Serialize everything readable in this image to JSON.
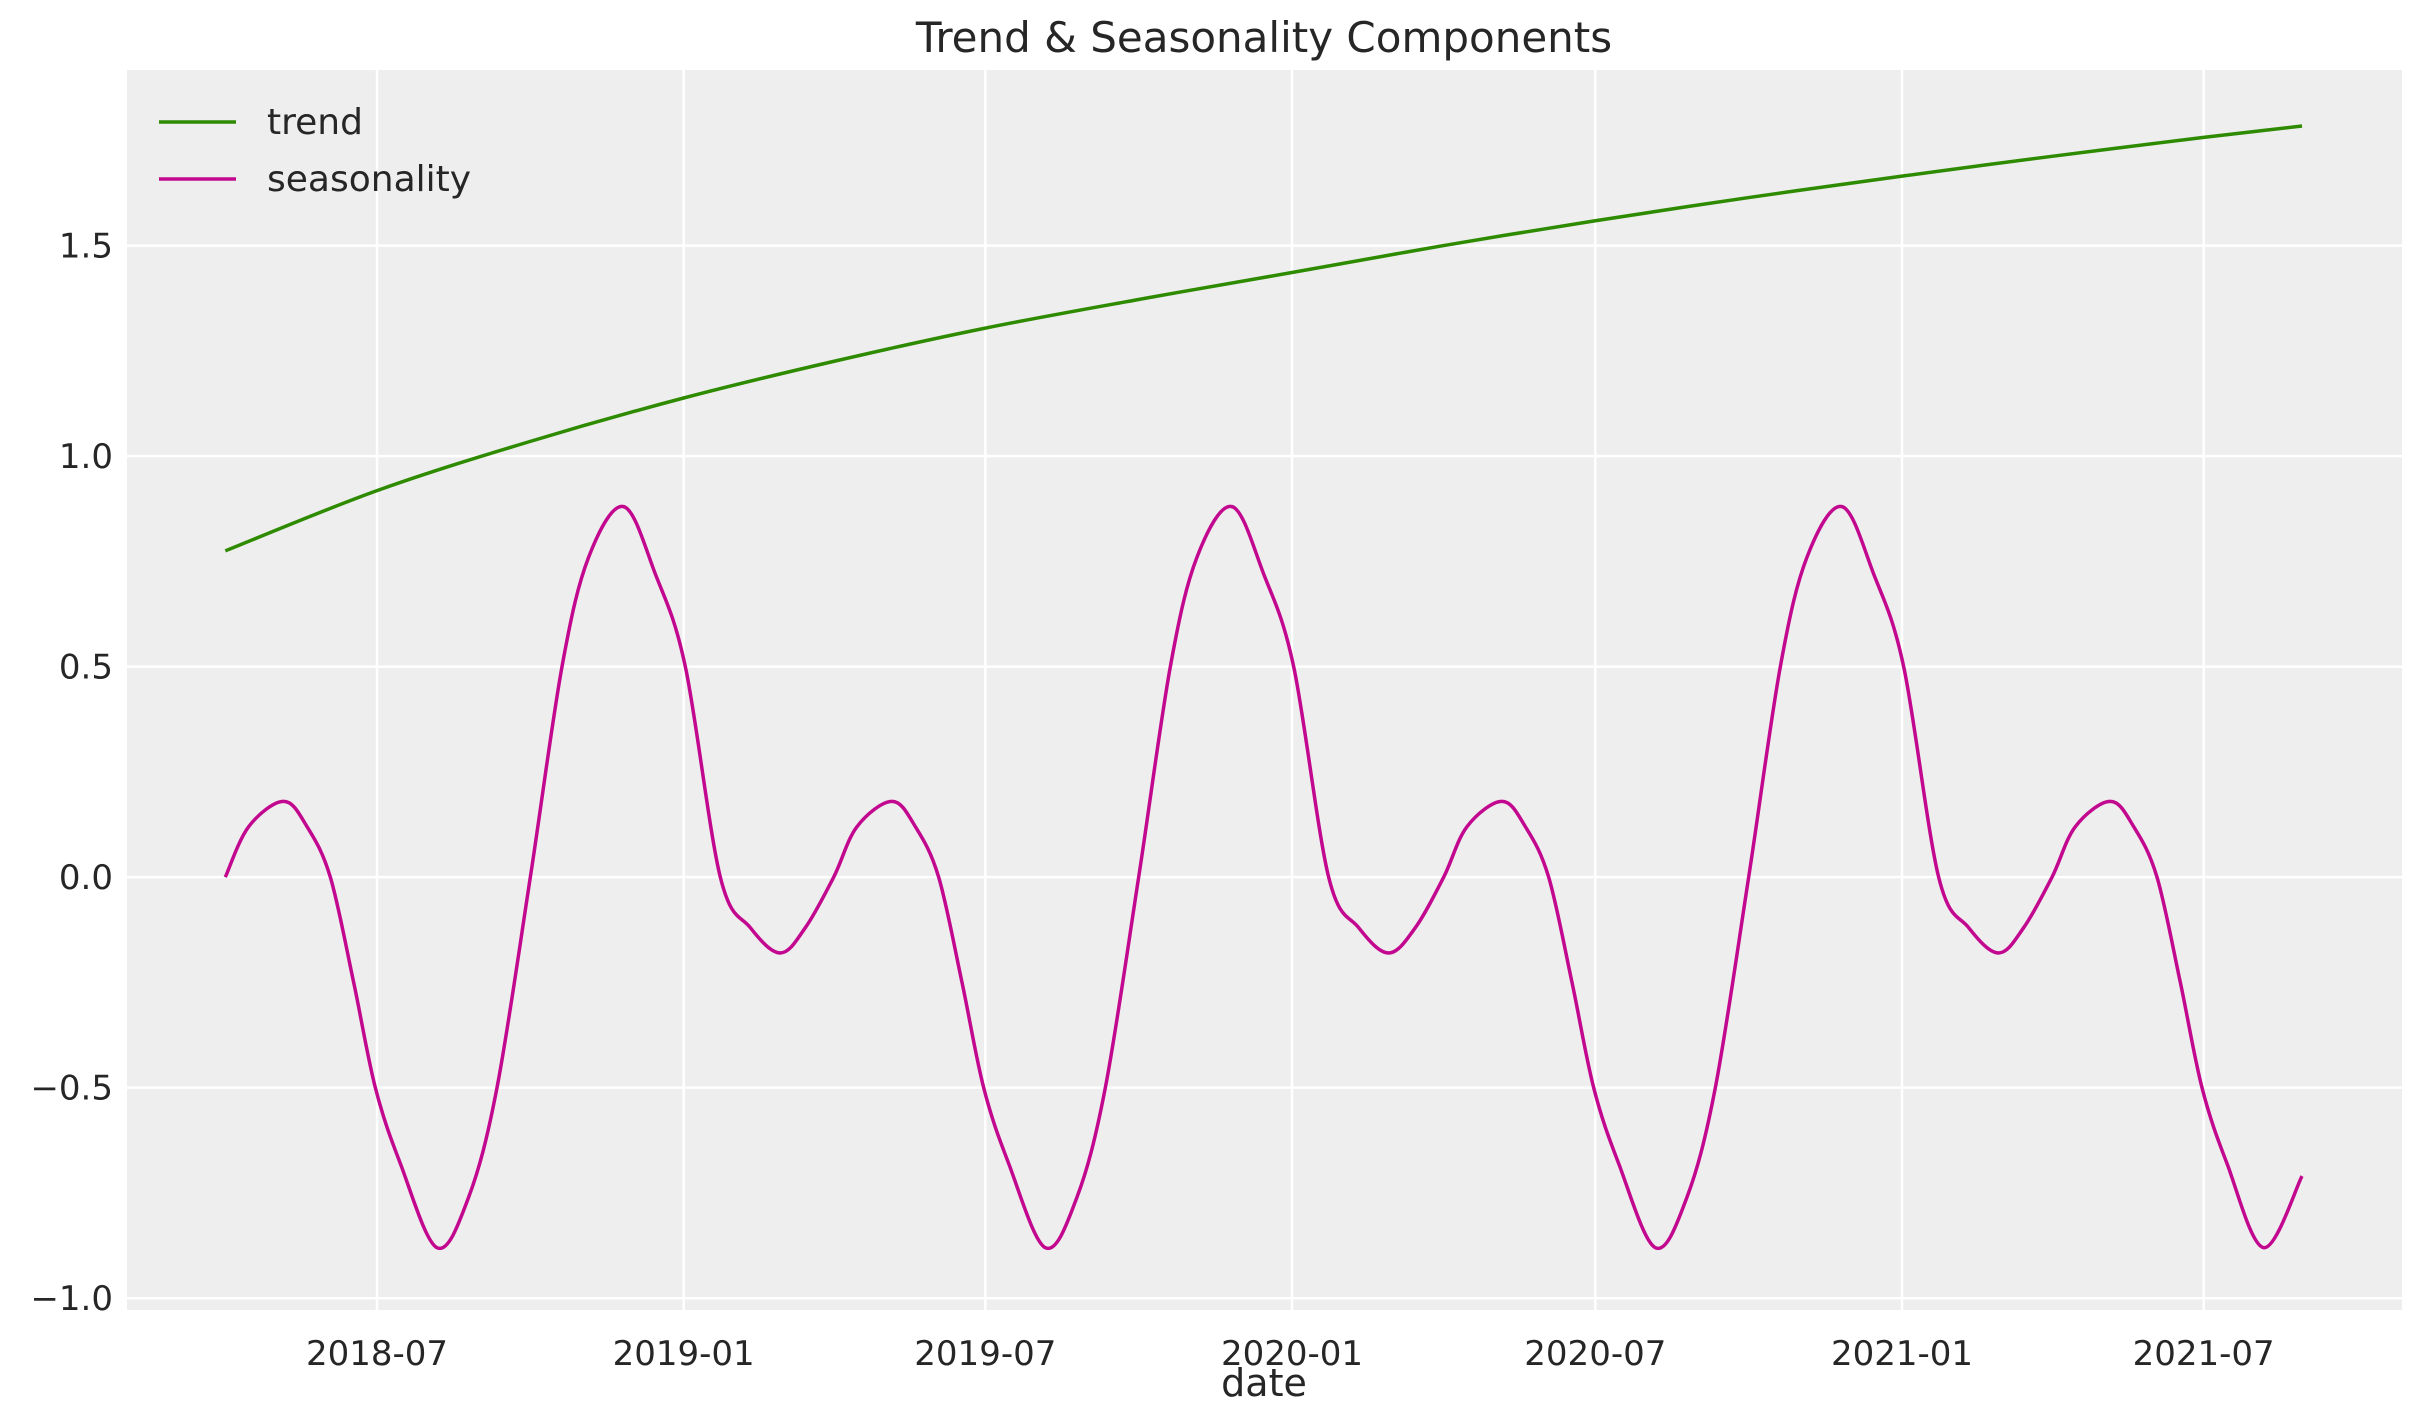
{
  "chart_data": {
    "type": "line",
    "title": "Trend & Seasonality Components",
    "xlabel": "date",
    "ylabel": "",
    "xlim": [
      "2018-02-01",
      "2021-10-28"
    ],
    "ylim": [
      -1.028,
      1.917
    ],
    "grid": true,
    "legend_placement": "top-left",
    "x_ticks": [
      {
        "date": "2018-07-01",
        "label": "2018-07"
      },
      {
        "date": "2019-01-01",
        "label": "2019-01"
      },
      {
        "date": "2019-07-01",
        "label": "2019-07"
      },
      {
        "date": "2020-01-01",
        "label": "2020-01"
      },
      {
        "date": "2020-07-01",
        "label": "2020-07"
      },
      {
        "date": "2021-01-01",
        "label": "2021-01"
      },
      {
        "date": "2021-07-01",
        "label": "2021-07"
      }
    ],
    "y_ticks": [
      {
        "value": -1.0,
        "label": "−1.0"
      },
      {
        "value": -0.5,
        "label": "−0.5"
      },
      {
        "value": 0.0,
        "label": "0.0"
      },
      {
        "value": 0.5,
        "label": "0.5"
      },
      {
        "value": 1.0,
        "label": "1.0"
      },
      {
        "value": 1.5,
        "label": "1.5"
      }
    ],
    "series": [
      {
        "name": "trend",
        "color": "#2e8b00",
        "points": [
          [
            "2018-04-01",
            0.775
          ],
          [
            "2018-07-01",
            0.918
          ],
          [
            "2018-10-01",
            1.035
          ],
          [
            "2019-01-01",
            1.138
          ],
          [
            "2019-04-01",
            1.225
          ],
          [
            "2019-07-01",
            1.304
          ],
          [
            "2019-10-01",
            1.372
          ],
          [
            "2020-01-01",
            1.436
          ],
          [
            "2020-04-01",
            1.5
          ],
          [
            "2020-07-01",
            1.559
          ],
          [
            "2020-10-01",
            1.614
          ],
          [
            "2021-01-01",
            1.665
          ],
          [
            "2021-04-01",
            1.712
          ],
          [
            "2021-07-01",
            1.757
          ],
          [
            "2021-08-29",
            1.784
          ]
        ]
      },
      {
        "name": "seasonality",
        "color": "#c2088f",
        "points": [
          [
            "2018-04-01",
            0.0
          ],
          [
            "2018-04-15",
            0.12
          ],
          [
            "2018-05-06",
            0.18
          ],
          [
            "2018-05-20",
            0.12
          ],
          [
            "2018-06-03",
            0.0
          ],
          [
            "2018-06-17",
            -0.25
          ],
          [
            "2018-06-30",
            -0.5
          ],
          [
            "2018-07-15",
            -0.68
          ],
          [
            "2018-08-06",
            -0.88
          ],
          [
            "2018-08-25",
            -0.76
          ],
          [
            "2018-09-11",
            -0.5
          ],
          [
            "2018-10-01",
            0.0
          ],
          [
            "2018-10-20",
            0.5
          ],
          [
            "2018-11-05",
            0.76
          ],
          [
            "2018-11-26",
            0.88
          ],
          [
            "2018-12-15",
            0.72
          ],
          [
            "2019-01-02",
            0.5
          ],
          [
            "2019-01-23",
            0.0
          ],
          [
            "2019-02-10",
            -0.12
          ],
          [
            "2019-02-28",
            -0.18
          ],
          [
            "2019-03-15",
            -0.12
          ],
          [
            "2019-04-01",
            0.0
          ],
          [
            "2019-04-15",
            0.12
          ],
          [
            "2019-05-06",
            0.18
          ],
          [
            "2019-05-20",
            0.12
          ],
          [
            "2019-06-03",
            0.0
          ],
          [
            "2019-06-17",
            -0.25
          ],
          [
            "2019-06-30",
            -0.5
          ],
          [
            "2019-07-15",
            -0.68
          ],
          [
            "2019-08-06",
            -0.88
          ],
          [
            "2019-08-25",
            -0.76
          ],
          [
            "2019-09-11",
            -0.5
          ],
          [
            "2019-10-01",
            0.0
          ],
          [
            "2019-10-20",
            0.5
          ],
          [
            "2019-11-05",
            0.76
          ],
          [
            "2019-11-26",
            0.88
          ],
          [
            "2019-12-15",
            0.72
          ],
          [
            "2020-01-02",
            0.5
          ],
          [
            "2020-01-23",
            0.0
          ],
          [
            "2020-02-10",
            -0.12
          ],
          [
            "2020-02-28",
            -0.18
          ],
          [
            "2020-03-15",
            -0.12
          ],
          [
            "2020-04-01",
            0.0
          ],
          [
            "2020-04-15",
            0.12
          ],
          [
            "2020-05-06",
            0.18
          ],
          [
            "2020-05-20",
            0.12
          ],
          [
            "2020-06-03",
            0.0
          ],
          [
            "2020-06-17",
            -0.25
          ],
          [
            "2020-06-30",
            -0.5
          ],
          [
            "2020-07-15",
            -0.68
          ],
          [
            "2020-08-06",
            -0.88
          ],
          [
            "2020-08-25",
            -0.76
          ],
          [
            "2020-09-11",
            -0.5
          ],
          [
            "2020-10-01",
            0.0
          ],
          [
            "2020-10-20",
            0.5
          ],
          [
            "2020-11-05",
            0.76
          ],
          [
            "2020-11-26",
            0.88
          ],
          [
            "2020-12-15",
            0.72
          ],
          [
            "2021-01-02",
            0.5
          ],
          [
            "2021-01-23",
            0.0
          ],
          [
            "2021-02-10",
            -0.12
          ],
          [
            "2021-02-28",
            -0.18
          ],
          [
            "2021-03-15",
            -0.12
          ],
          [
            "2021-04-01",
            0.0
          ],
          [
            "2021-04-15",
            0.12
          ],
          [
            "2021-05-06",
            0.18
          ],
          [
            "2021-05-20",
            0.12
          ],
          [
            "2021-06-03",
            0.0
          ],
          [
            "2021-06-17",
            -0.25
          ],
          [
            "2021-06-30",
            -0.5
          ],
          [
            "2021-07-15",
            -0.68
          ],
          [
            "2021-08-06",
            -0.88
          ],
          [
            "2021-08-29",
            -0.71
          ]
        ]
      }
    ]
  },
  "colors": {
    "plot_background": "#eeeeee",
    "grid": "#ffffff"
  }
}
